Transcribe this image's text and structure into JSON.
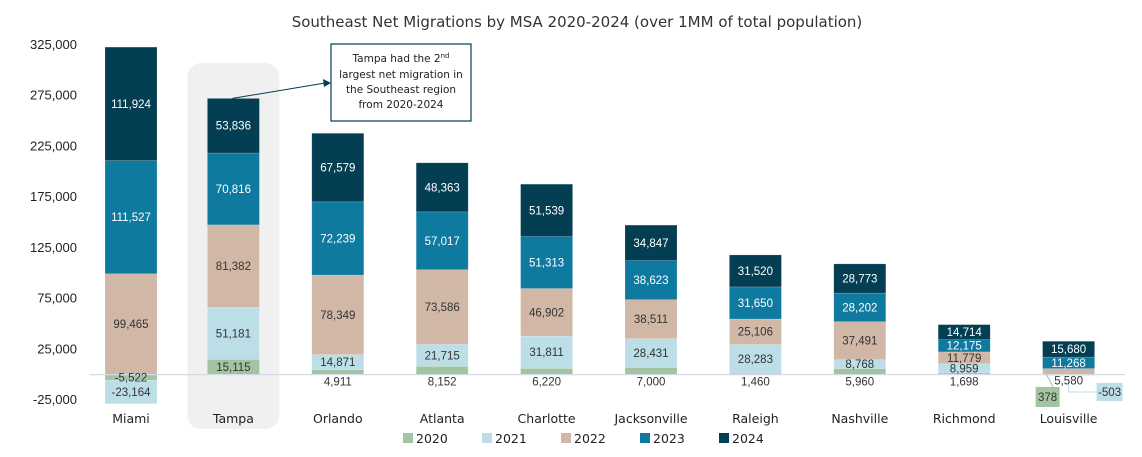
{
  "chart_data": {
    "type": "bar",
    "stacked": true,
    "title": "Southeast Net Migrations by MSA 2020-2024 (over 1MM of total population)",
    "xlabel": "",
    "ylabel": "",
    "ylim": [
      -25000,
      325000
    ],
    "yticks": [
      325000,
      275000,
      225000,
      175000,
      125000,
      75000,
      25000,
      -25000
    ],
    "ytick_labels": [
      "325,000",
      "275,000",
      "225,000",
      "175,000",
      "125,000",
      "75,000",
      "25,000",
      "-25,000"
    ],
    "grid": false,
    "legend_position": "bottom",
    "categories": [
      "Miami",
      "Tampa",
      "Orlando",
      "Atlanta",
      "Charlotte",
      "Jacksonville",
      "Raleigh",
      "Nashville",
      "Richmond",
      "Louisville"
    ],
    "series": [
      {
        "name": "2020",
        "color": "#a3c4a0",
        "values": [
          -5522,
          15115,
          4911,
          8152,
          6220,
          7000,
          1460,
          5960,
          1698,
          378
        ],
        "labels": [
          "-5,522",
          "15,115",
          "4,911",
          "8,152",
          "6,220",
          "7,000",
          "1,460",
          "5,960",
          "1,698",
          "378"
        ]
      },
      {
        "name": "2021",
        "color": "#bcdfe7",
        "values": [
          -23164,
          51181,
          14871,
          21715,
          31811,
          28431,
          28283,
          8768,
          8959,
          -503
        ],
        "labels": [
          "-23,164",
          "51,181",
          "14,871",
          "21,715",
          "31,811",
          "28,431",
          "28,283",
          "8,768",
          "8,959",
          "-503"
        ]
      },
      {
        "name": "2022",
        "color": "#d1b8a6",
        "values": [
          99465,
          81382,
          78349,
          73586,
          46902,
          38511,
          25106,
          37491,
          11779,
          5580
        ],
        "labels": [
          "99,465",
          "81,382",
          "78,349",
          "73,586",
          "46,902",
          "38,511",
          "25,106",
          "37,491",
          "11,779",
          "5,580"
        ]
      },
      {
        "name": "2023",
        "color": "#0e7aa0",
        "values": [
          111527,
          70816,
          72239,
          57017,
          51313,
          38623,
          31650,
          28202,
          12175,
          11268
        ],
        "labels": [
          "111,527",
          "70,816",
          "72,239",
          "57,017",
          "51,313",
          "38,623",
          "31,650",
          "28,202",
          "12,175",
          "11,268"
        ]
      },
      {
        "name": "2024",
        "color": "#043e52",
        "values": [
          111924,
          53836,
          67579,
          48363,
          51539,
          34847,
          31520,
          28773,
          14714,
          15680
        ],
        "labels": [
          "111,924",
          "53,836",
          "67,579",
          "48,363",
          "51,539",
          "34,847",
          "31,520",
          "28,773",
          "14,714",
          "15,680"
        ]
      }
    ],
    "highlight_category": "Tampa",
    "annotation": {
      "line1_prefix": "Tampa had the 2",
      "line1_sup": "nd",
      "line2": "largest net migration in",
      "line3": "the Southeast region",
      "line4": "from 2020-2024",
      "target_category": "Tampa"
    }
  }
}
